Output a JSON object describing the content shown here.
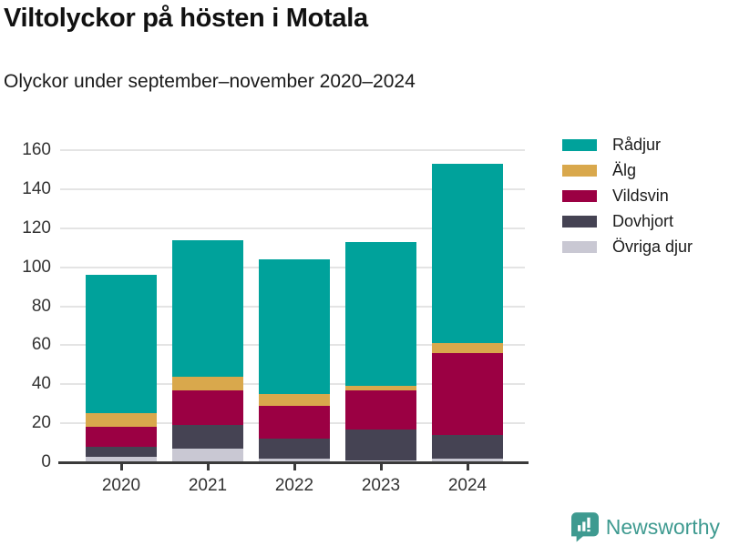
{
  "header": {
    "title": "Viltolyckor på hösten i Motala",
    "subtitle": "Olyckor under september–november 2020–2024"
  },
  "chart_data": {
    "type": "bar",
    "stacked": true,
    "title": "Viltolyckor på hösten i Motala",
    "subtitle": "Olyckor under september–november 2020–2024",
    "categories": [
      "2020",
      "2021",
      "2022",
      "2023",
      "2024"
    ],
    "series": [
      {
        "name": "Övriga djur",
        "color": "#c9c8d3",
        "values": [
          3,
          7,
          2,
          1,
          2
        ]
      },
      {
        "name": "Dovhjort",
        "color": "#454353",
        "values": [
          5,
          12,
          10,
          16,
          12
        ]
      },
      {
        "name": "Vildsvin",
        "color": "#9b0043",
        "values": [
          10,
          18,
          17,
          20,
          42
        ]
      },
      {
        "name": "Älg",
        "color": "#d9a84c",
        "values": [
          7,
          7,
          6,
          2,
          5
        ]
      },
      {
        "name": "Rådjur",
        "color": "#00a29b",
        "values": [
          71,
          70,
          69,
          74,
          92
        ]
      }
    ],
    "stack_order": "bottom-to-top",
    "totals": [
      96,
      114,
      104,
      113,
      153
    ],
    "ylim": [
      0,
      160
    ],
    "yticks": [
      0,
      20,
      40,
      60,
      80,
      100,
      120,
      140,
      160
    ],
    "grid": true,
    "legend_position": "right",
    "legend_order": [
      "Rådjur",
      "Älg",
      "Vildsvin",
      "Dovhjort",
      "Övriga djur"
    ]
  },
  "colors": {
    "grid": "#e4e4e4",
    "axis": "#3a3a3a",
    "tick_text": "#333333",
    "title_text": "#111111",
    "brand": "#3e9a90"
  },
  "footer": {
    "brand": "Newsworthy"
  }
}
